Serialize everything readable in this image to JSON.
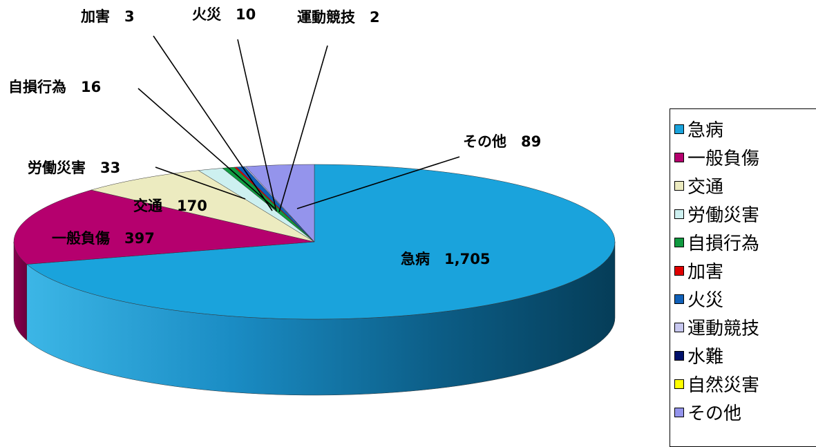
{
  "chart_data": {
    "type": "pie",
    "slices": [
      {
        "label": "急病",
        "value": 1705,
        "value_text": "1,705",
        "color": "#1aa3dc"
      },
      {
        "label": "一般負傷",
        "value": 397,
        "value_text": "397",
        "color": "#b5006e"
      },
      {
        "label": "交通",
        "value": 170,
        "value_text": "170",
        "color": "#ecebc0"
      },
      {
        "label": "労働災害",
        "value": 33,
        "value_text": "33",
        "color": "#cdf0f0"
      },
      {
        "label": "自損行為",
        "value": 16,
        "value_text": "16",
        "color": "#109a40"
      },
      {
        "label": "加害",
        "value": 3,
        "value_text": "3",
        "color": "#e00000"
      },
      {
        "label": "火災",
        "value": 10,
        "value_text": "10",
        "color": "#1060b8"
      },
      {
        "label": "運動競技",
        "value": 2,
        "value_text": "2",
        "color": "#c8c8f0"
      },
      {
        "label": "水難",
        "value": 0,
        "value_text": "",
        "color": "#00106a"
      },
      {
        "label": "自然災害",
        "value": 0,
        "value_text": "",
        "color": "#ffff00"
      },
      {
        "label": "その他",
        "value": 89,
        "value_text": "89",
        "color": "#9494ec"
      }
    ],
    "legend_position": "right"
  },
  "legend": {
    "items": [
      {
        "label": "急病",
        "color": "#1aa3dc"
      },
      {
        "label": "一般負傷",
        "color": "#b5006e"
      },
      {
        "label": "交通",
        "color": "#ecebc0"
      },
      {
        "label": "労働災害",
        "color": "#cdf0f0"
      },
      {
        "label": "自損行為",
        "color": "#109a40"
      },
      {
        "label": "加害",
        "color": "#e00000"
      },
      {
        "label": "火災",
        "color": "#1060b8"
      },
      {
        "label": "運動競技",
        "color": "#c8c8f0"
      },
      {
        "label": "水難",
        "color": "#00106a"
      },
      {
        "label": "自然災害",
        "color": "#ffff00"
      },
      {
        "label": "その他",
        "color": "#9494ec"
      }
    ]
  }
}
